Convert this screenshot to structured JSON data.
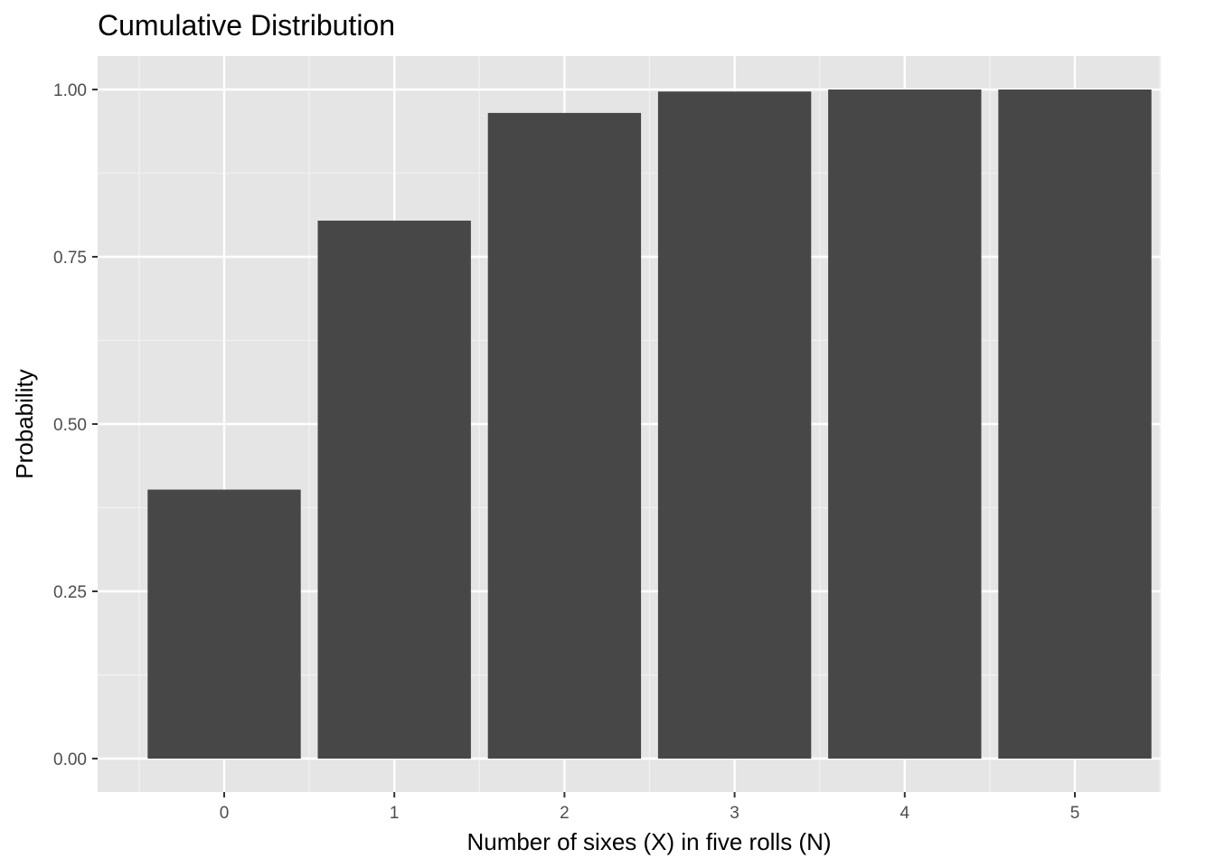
{
  "chart_data": {
    "type": "bar",
    "title": "Cumulative Distribution",
    "xlabel": "Number of sixes (X) in five rolls (N)",
    "ylabel": "Probability",
    "categories": [
      "0",
      "1",
      "2",
      "3",
      "4",
      "5"
    ],
    "values": [
      0.402,
      0.804,
      0.965,
      0.997,
      1.0,
      1.0
    ],
    "ylim": [
      -0.05,
      1.05
    ],
    "yticks": [
      "0.00",
      "0.25",
      "0.50",
      "0.75",
      "1.00"
    ],
    "ytick_values": [
      0,
      0.25,
      0.5,
      0.75,
      1.0
    ],
    "grid": true,
    "legend": "none",
    "colors": {
      "bar": "#474747",
      "panel": "#e5e5e5",
      "grid_major": "#ffffff",
      "grid_minor": "#f2f2f2",
      "tick_text": "#4d4d4d"
    }
  }
}
